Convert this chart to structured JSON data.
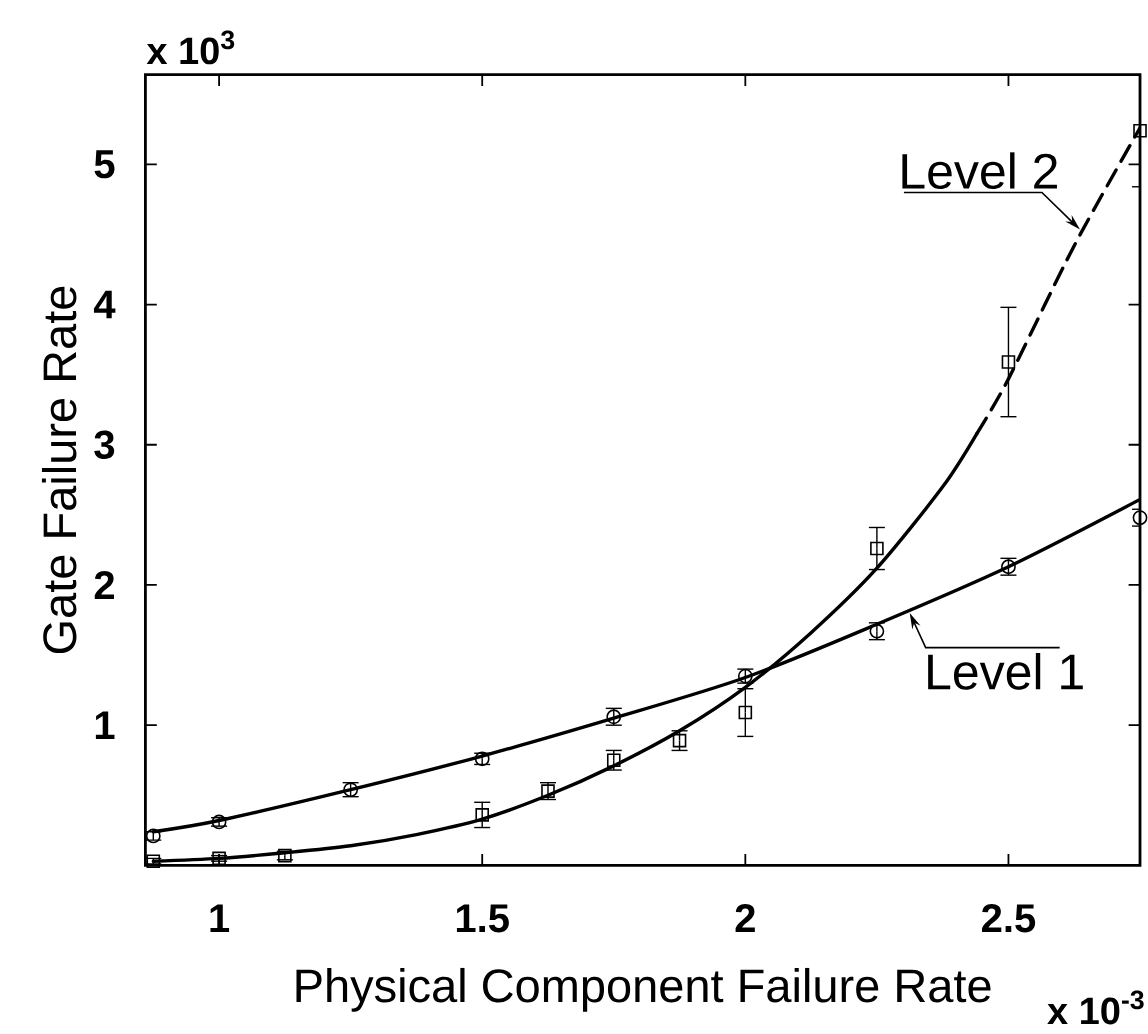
{
  "chart_data": {
    "type": "scatter",
    "xlabel": "Physical Component Failure Rate",
    "ylabel": "Gate Failure Rate",
    "annotations": [
      "x 10$^{3}$",
      "x 10$^{-3}$",
      {
        "text": "Level 1",
        "x": 2.31,
        "y": 1.82
      },
      {
        "text": "Level 2",
        "x": 2.64,
        "y": 4.52
      }
    ],
    "xlim": [
      0.86,
      2.75
    ],
    "ylim": [
      0,
      5.64
    ],
    "xticks": [
      1,
      1.5,
      2,
      2.5
    ],
    "yticks": [
      1,
      2,
      3,
      4,
      5
    ],
    "series": [
      {
        "marker": "circle",
        "color": "#000000",
        "x": [
          0.875,
          1,
          1.25,
          1.5,
          1.75,
          2,
          2.25,
          2.5,
          2.75
        ],
        "values": [
          0.21,
          0.31,
          0.54,
          0.76,
          1.06,
          1.35,
          1.67,
          2.13,
          2.48
        ],
        "errors": [
          0.03,
          0.03,
          0.05,
          0.04,
          0.06,
          0.05,
          0.06,
          0.06,
          0.06
        ]
      },
      {
        "type": "line",
        "marker": "none",
        "line_style": "solid",
        "color": "#000000",
        "x": [
          0.875,
          1,
          1.25,
          1.5,
          1.75,
          2,
          2.25,
          2.5,
          2.75
        ],
        "values": [
          0.24,
          0.32,
          0.54,
          0.78,
          1.05,
          1.34,
          1.72,
          2.13,
          2.61
        ]
      },
      {
        "marker": "square",
        "color": "#000000",
        "x": [
          0.875,
          1,
          1.125,
          1.5,
          1.625,
          1.75,
          1.875,
          2,
          2.25,
          2.5,
          2.75
        ],
        "values": [
          0.03,
          0.05,
          0.07,
          0.36,
          0.53,
          0.75,
          0.89,
          1.09,
          2.26,
          3.59,
          5.24
        ],
        "errors": [
          0.02,
          0.02,
          0.03,
          0.09,
          0.06,
          0.07,
          0.07,
          0.17,
          0.15,
          0.39,
          0.4
        ]
      },
      {
        "type": "line",
        "marker": "none",
        "line_style": "solid",
        "color": "#000000",
        "x": [
          0.875,
          1,
          1.125,
          1.25,
          1.375,
          1.5,
          1.625,
          1.75,
          1.875,
          2,
          2.125,
          2.25,
          2.375,
          2.44
        ],
        "values": [
          0.03,
          0.05,
          0.09,
          0.14,
          0.22,
          0.33,
          0.5,
          0.71,
          0.96,
          1.27,
          1.66,
          2.12,
          2.7,
          3.08
        ]
      },
      {
        "type": "line",
        "marker": "none",
        "line_style": "dashed",
        "color": "#000000",
        "x": [
          2.44,
          2.5,
          2.625,
          2.75
        ],
        "values": [
          3.08,
          3.47,
          4.42,
          5.26
        ]
      }
    ]
  }
}
